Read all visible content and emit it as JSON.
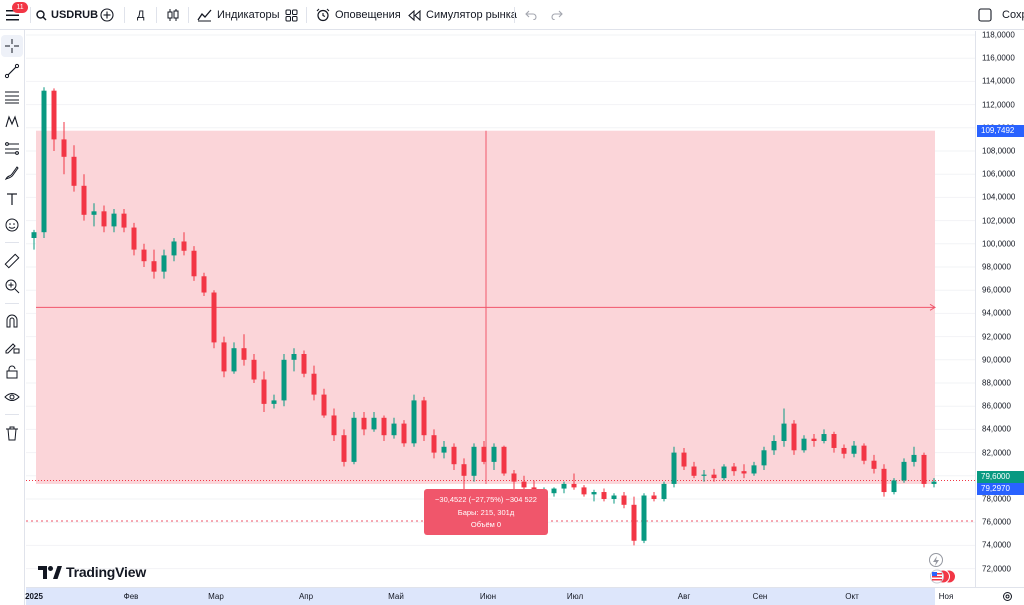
{
  "toolbar": {
    "menu_badge": "11",
    "symbol": "USDRUB",
    "interval": "Д",
    "indicators": "Индикаторы",
    "alerts": "Оповещения",
    "replay": "Симулятор рынка",
    "save": "Сохр"
  },
  "left_tools": [
    "crosshair-icon",
    "trend-line-icon",
    "horizontal-lines-icon",
    "pattern-icon",
    "fib-icon",
    "brush-icon",
    "text-icon",
    "emoji-icon",
    "ruler-icon",
    "zoom-in-icon",
    "magnet-icon",
    "pencil-lock-icon",
    "lock-icon",
    "eye-icon",
    "trash-icon"
  ],
  "price_axis": {
    "ticks": [
      "118,0000",
      "116,0000",
      "114,0000",
      "112,0000",
      "110,0000",
      "108,0000",
      "106,0000",
      "104,0000",
      "102,0000",
      "100,0000",
      "98,0000",
      "96,0000",
      "94,0000",
      "92,0000",
      "90,0000",
      "88,0000",
      "86,0000",
      "84,0000",
      "82,0000",
      "80,0000",
      "78,0000",
      "76,0000",
      "74,0000",
      "72,0000"
    ],
    "top_badge": "109,7492",
    "top_badge_color": "#2962ff",
    "current_badge": "79,2970",
    "current_badge_color": "#2962ff",
    "green_badge": "79,6000",
    "green_badge_color": "#089981"
  },
  "time_axis": {
    "labels": [
      "2025",
      "Фев",
      "Мар",
      "Апр",
      "Май",
      "Июн",
      "Июл",
      "Авг",
      "Сен",
      "Окт",
      "Ноя"
    ]
  },
  "measure": {
    "line1": "−30,4522 (−27,75%) −304 522",
    "line2": "Бары: 215, 301д",
    "line3": "Объём 0",
    "top_price": 109.7492,
    "bottom_price": 79.297,
    "fill_color": "#fbd5d9",
    "box_color": "#f0566b"
  },
  "logo": "TradingView",
  "colors": {
    "up": "#089981",
    "down": "#f23645",
    "accent": "#2962ff"
  },
  "chart_data": {
    "type": "candlestick",
    "symbol": "USDRUB",
    "interval": "Д",
    "ylim": [
      71,
      119
    ],
    "ohlc": [
      [
        100.5,
        101.2,
        99.5,
        101.0
      ],
      [
        101.0,
        113.5,
        100.5,
        113.2
      ],
      [
        113.2,
        113.4,
        108.0,
        109.0
      ],
      [
        109.0,
        110.5,
        106.0,
        107.5
      ],
      [
        107.5,
        108.5,
        104.5,
        105.0
      ],
      [
        105.0,
        106.0,
        102.0,
        102.5
      ],
      [
        102.5,
        103.5,
        101.5,
        102.8
      ],
      [
        102.8,
        103.3,
        101.0,
        101.5
      ],
      [
        101.5,
        103.0,
        101.0,
        102.6
      ],
      [
        102.6,
        103.0,
        101.0,
        101.4
      ],
      [
        101.4,
        101.8,
        99.0,
        99.5
      ],
      [
        99.5,
        100.0,
        98.0,
        98.5
      ],
      [
        98.5,
        99.5,
        97.0,
        97.6
      ],
      [
        97.6,
        99.5,
        97.0,
        99.0
      ],
      [
        99.0,
        100.5,
        98.5,
        100.2
      ],
      [
        100.2,
        101.0,
        99.0,
        99.4
      ],
      [
        99.4,
        99.8,
        96.8,
        97.2
      ],
      [
        97.2,
        97.5,
        95.5,
        95.8
      ],
      [
        95.8,
        96.0,
        91.0,
        91.5
      ],
      [
        91.5,
        92.0,
        88.5,
        89.0
      ],
      [
        89.0,
        91.5,
        88.8,
        91.0
      ],
      [
        91.0,
        92.2,
        89.5,
        90.0
      ],
      [
        90.0,
        90.5,
        88.0,
        88.3
      ],
      [
        88.3,
        89.0,
        85.5,
        86.2
      ],
      [
        86.2,
        87.0,
        85.8,
        86.5
      ],
      [
        86.5,
        90.5,
        86.0,
        90.0
      ],
      [
        90.0,
        91.0,
        89.0,
        90.5
      ],
      [
        90.5,
        90.8,
        88.5,
        88.8
      ],
      [
        88.8,
        89.5,
        86.5,
        87.0
      ],
      [
        87.0,
        87.5,
        85.0,
        85.2
      ],
      [
        85.2,
        85.8,
        83.0,
        83.5
      ],
      [
        83.5,
        84.0,
        80.8,
        81.2
      ],
      [
        81.2,
        85.5,
        81.0,
        85.0
      ],
      [
        85.0,
        85.5,
        83.5,
        84.0
      ],
      [
        84.0,
        85.5,
        83.8,
        85.0
      ],
      [
        85.0,
        85.2,
        83.0,
        83.5
      ],
      [
        83.5,
        85.0,
        83.2,
        84.5
      ],
      [
        84.5,
        84.8,
        82.5,
        82.8
      ],
      [
        82.8,
        87.0,
        82.5,
        86.5
      ],
      [
        86.5,
        86.8,
        83.0,
        83.5
      ],
      [
        83.5,
        84.0,
        81.5,
        82.0
      ],
      [
        82.0,
        83.0,
        81.5,
        82.5
      ],
      [
        82.5,
        82.8,
        80.5,
        81.0
      ],
      [
        81.0,
        81.5,
        78.5,
        80.0
      ],
      [
        80.0,
        82.8,
        79.5,
        82.5
      ],
      [
        82.5,
        83.0,
        81.0,
        81.2
      ],
      [
        81.2,
        82.8,
        80.5,
        82.5
      ],
      [
        82.5,
        82.6,
        80.0,
        80.2
      ],
      [
        80.2,
        80.5,
        78.8,
        79.5
      ],
      [
        79.5,
        80.0,
        78.5,
        79.0
      ],
      [
        79.0,
        79.6,
        78.0,
        78.3
      ],
      [
        78.3,
        79.0,
        77.8,
        78.5
      ],
      [
        78.5,
        79.0,
        78.2,
        78.9
      ],
      [
        78.9,
        79.5,
        78.5,
        79.3
      ],
      [
        79.3,
        80.2,
        78.8,
        79.0
      ],
      [
        79.0,
        79.2,
        78.2,
        78.4
      ],
      [
        78.4,
        78.8,
        77.8,
        78.6
      ],
      [
        78.6,
        78.9,
        77.8,
        78.0
      ],
      [
        78.0,
        78.5,
        77.6,
        78.3
      ],
      [
        78.3,
        78.6,
        77.2,
        77.5
      ],
      [
        77.5,
        78.2,
        74.0,
        74.4
      ],
      [
        74.4,
        78.5,
        74.2,
        78.3
      ],
      [
        78.3,
        78.6,
        77.8,
        78.0
      ],
      [
        78.0,
        79.5,
        77.8,
        79.3
      ],
      [
        79.3,
        82.5,
        79.0,
        82.0
      ],
      [
        82.0,
        82.4,
        80.5,
        80.8
      ],
      [
        80.8,
        81.2,
        79.8,
        80.0
      ],
      [
        80.0,
        80.5,
        79.5,
        80.1
      ],
      [
        80.1,
        80.6,
        79.5,
        79.8
      ],
      [
        79.8,
        81.0,
        79.6,
        80.8
      ],
      [
        80.8,
        81.1,
        80.0,
        80.4
      ],
      [
        80.4,
        81.0,
        79.8,
        80.2
      ],
      [
        80.2,
        81.2,
        80.0,
        80.9
      ],
      [
        80.9,
        82.5,
        80.5,
        82.2
      ],
      [
        82.2,
        83.5,
        81.8,
        83.0
      ],
      [
        83.0,
        85.8,
        82.5,
        84.5
      ],
      [
        84.5,
        84.8,
        81.8,
        82.2
      ],
      [
        82.2,
        83.5,
        82.0,
        83.2
      ],
      [
        83.2,
        83.6,
        82.5,
        83.0
      ],
      [
        83.0,
        84.0,
        82.8,
        83.6
      ],
      [
        83.6,
        83.8,
        82.0,
        82.4
      ],
      [
        82.4,
        82.7,
        81.5,
        81.9
      ],
      [
        81.9,
        83.0,
        81.6,
        82.6
      ],
      [
        82.6,
        82.8,
        81.0,
        81.3
      ],
      [
        81.3,
        81.8,
        80.2,
        80.6
      ],
      [
        80.6,
        81.0,
        78.2,
        78.6
      ],
      [
        78.6,
        79.8,
        78.4,
        79.6
      ],
      [
        79.6,
        81.5,
        79.4,
        81.2
      ],
      [
        81.2,
        82.5,
        80.8,
        81.8
      ],
      [
        81.8,
        82.0,
        79.0,
        79.3
      ],
      [
        79.3,
        79.8,
        79.0,
        79.5
      ]
    ]
  }
}
